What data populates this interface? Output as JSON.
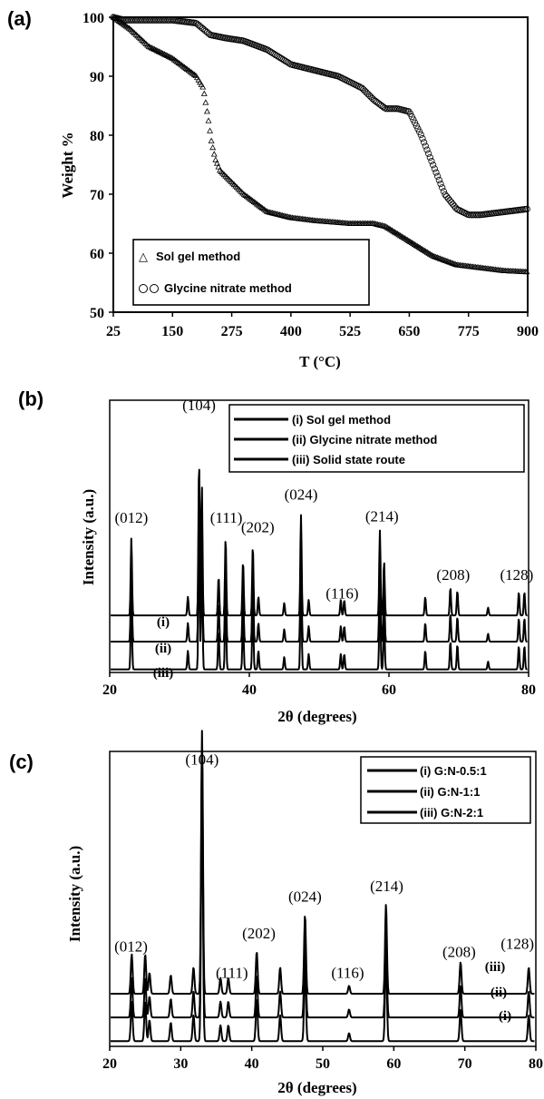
{
  "chart_data": [
    {
      "panel": "(a)",
      "type": "scatter",
      "xlabel": "T (°C)",
      "ylabel": "Weight %",
      "xlim": [
        25,
        900
      ],
      "ylim": [
        50,
        100
      ],
      "xticks": [
        "25",
        "150",
        "275",
        "400",
        "525",
        "650",
        "775",
        "900"
      ],
      "yticks": [
        "50",
        "60",
        "70",
        "80",
        "90",
        "100"
      ],
      "legend_position": "bottom-left",
      "series": [
        {
          "name": "Sol gel method",
          "marker": "triangle",
          "x": [
            25,
            60,
            100,
            150,
            200,
            215,
            225,
            232,
            240,
            250,
            275,
            300,
            350,
            400,
            450,
            525,
            575,
            600,
            650,
            700,
            750,
            800,
            850,
            900
          ],
          "y": [
            100,
            98,
            95,
            93,
            90,
            88,
            83,
            79,
            76,
            74,
            72,
            70,
            67,
            66,
            65.5,
            65,
            65,
            64.5,
            62,
            59.5,
            58,
            57.5,
            57,
            56.8
          ]
        },
        {
          "name": "Glycine nitrate method",
          "marker": "circle",
          "x": [
            25,
            50,
            100,
            150,
            200,
            215,
            230,
            260,
            300,
            350,
            400,
            450,
            500,
            550,
            575,
            600,
            625,
            650,
            675,
            700,
            725,
            750,
            775,
            800,
            850,
            900
          ],
          "y": [
            100,
            99.5,
            99.5,
            99.5,
            99,
            98,
            97,
            96.5,
            96,
            94.5,
            92,
            91,
            90,
            88,
            86,
            84.5,
            84.5,
            84,
            80,
            75,
            70,
            67.5,
            66.5,
            66.5,
            67,
            67.5
          ]
        }
      ]
    },
    {
      "panel": "(b)",
      "type": "line",
      "xlabel": "2θ (degrees)",
      "ylabel": "Intensity (a.u.)",
      "xlim": [
        20,
        80
      ],
      "xticks": [
        "20",
        "40",
        "60",
        "80"
      ],
      "legend_position": "top-right",
      "series": [
        {
          "name": "(i) Sol gel method",
          "tag": "(i)",
          "baseline": 0.37
        },
        {
          "name": "(ii) Glycine nitrate method",
          "tag": "(ii)",
          "baseline": 0.2
        },
        {
          "name": "(iii) Solid state route",
          "tag": "(iii)",
          "baseline": 0.02
        }
      ],
      "peaks": [
        {
          "x": 23.1,
          "h": 0.5
        },
        {
          "x": 31.2,
          "h": 0.12
        },
        {
          "x": 32.8,
          "h": 1.0
        },
        {
          "x": 33.2,
          "h": 0.85
        },
        {
          "x": 35.6,
          "h": 0.25
        },
        {
          "x": 36.6,
          "h": 0.5
        },
        {
          "x": 39.1,
          "h": 0.35
        },
        {
          "x": 40.5,
          "h": 0.45
        },
        {
          "x": 41.3,
          "h": 0.12
        },
        {
          "x": 45.0,
          "h": 0.08
        },
        {
          "x": 47.4,
          "h": 0.65
        },
        {
          "x": 48.5,
          "h": 0.1
        },
        {
          "x": 53.1,
          "h": 0.1
        },
        {
          "x": 53.6,
          "h": 0.1
        },
        {
          "x": 58.7,
          "h": 0.55
        },
        {
          "x": 59.3,
          "h": 0.35
        },
        {
          "x": 65.2,
          "h": 0.12
        },
        {
          "x": 68.8,
          "h": 0.18
        },
        {
          "x": 69.8,
          "h": 0.16
        },
        {
          "x": 74.2,
          "h": 0.05
        },
        {
          "x": 78.6,
          "h": 0.15
        },
        {
          "x": 79.4,
          "h": 0.15
        }
      ],
      "annotations": [
        {
          "label": "(012)",
          "x": 23.1,
          "y": 0.97
        },
        {
          "label": "(104)",
          "x": 32.8,
          "y": 1.7
        },
        {
          "label": "(111)",
          "x": 36.7,
          "y": 0.97
        },
        {
          "label": "(202)",
          "x": 41.2,
          "y": 0.91
        },
        {
          "label": "(024)",
          "x": 47.4,
          "y": 1.12
        },
        {
          "label": "(116)",
          "x": 53.3,
          "y": 0.48
        },
        {
          "label": "(214)",
          "x": 59.0,
          "y": 0.98
        },
        {
          "label": "(208)",
          "x": 69.2,
          "y": 0.6
        },
        {
          "label": "(128)",
          "x": 78.3,
          "y": 0.6
        }
      ]
    },
    {
      "panel": "(c)",
      "type": "line",
      "xlabel": "2θ (degrees)",
      "ylabel": "Intensity (a.u.)",
      "xlim": [
        20,
        80
      ],
      "xticks": [
        "20",
        "30",
        "40",
        "50",
        "60",
        "70",
        "80"
      ],
      "legend_position": "top-right",
      "series": [
        {
          "name": "(i) G:N-0.5:1",
          "tag": "(i)",
          "baseline": 0.02
        },
        {
          "name": "(ii) G:N-1:1",
          "tag": "(ii)",
          "baseline": 0.11
        },
        {
          "name": "(iii) G:N-2:1",
          "tag": "(iii)",
          "baseline": 0.2
        }
      ],
      "peaks": [
        {
          "x": 23.1,
          "h": 0.15
        },
        {
          "x": 25.0,
          "h": 0.15
        },
        {
          "x": 25.6,
          "h": 0.08
        },
        {
          "x": 28.6,
          "h": 0.07
        },
        {
          "x": 31.8,
          "h": 0.1
        },
        {
          "x": 33.0,
          "h": 1.0
        },
        {
          "x": 35.6,
          "h": 0.06
        },
        {
          "x": 36.7,
          "h": 0.06
        },
        {
          "x": 40.7,
          "h": 0.16
        },
        {
          "x": 44.0,
          "h": 0.1
        },
        {
          "x": 47.5,
          "h": 0.3
        },
        {
          "x": 53.7,
          "h": 0.03
        },
        {
          "x": 58.9,
          "h": 0.34
        },
        {
          "x": 69.4,
          "h": 0.12
        },
        {
          "x": 79.0,
          "h": 0.1
        }
      ],
      "annotations": [
        {
          "label": "(012)",
          "x": 23.0,
          "y": 0.36
        },
        {
          "label": "(104)",
          "x": 33.0,
          "y": 1.07
        },
        {
          "label": "(111)",
          "x": 37.2,
          "y": 0.26
        },
        {
          "label": "(202)",
          "x": 41.0,
          "y": 0.41
        },
        {
          "label": "(024)",
          "x": 47.5,
          "y": 0.55
        },
        {
          "label": "(116)",
          "x": 53.5,
          "y": 0.26
        },
        {
          "label": "(214)",
          "x": 59.0,
          "y": 0.59
        },
        {
          "label": "(208)",
          "x": 69.2,
          "y": 0.34
        },
        {
          "label": "(128)",
          "x": 77.4,
          "y": 0.37
        }
      ]
    }
  ]
}
